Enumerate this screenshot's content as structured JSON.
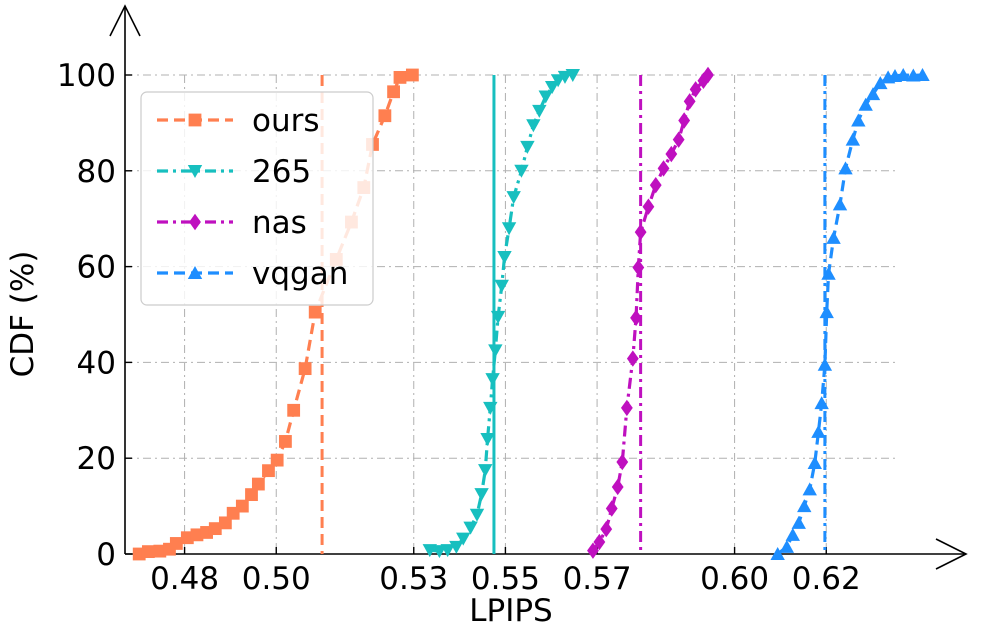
{
  "chart_data": {
    "type": "line",
    "title": "",
    "xlabel": "LPIPS",
    "ylabel": "CDF (%)",
    "x_ticks": [
      "0.48",
      "0.50",
      "0.53",
      "0.55",
      "0.57",
      "0.60",
      "0.62"
    ],
    "y_ticks": [
      "0",
      "20",
      "40",
      "60",
      "80",
      "100"
    ],
    "xlim": [
      0.467,
      0.635
    ],
    "ylim": [
      0,
      100
    ],
    "grid": true,
    "legend_position": "top-left",
    "series": [
      {
        "name": "ours",
        "color": "#ff7f50",
        "marker": "square",
        "line_style": "dashed",
        "median": 0.51,
        "median_line_style": "dashed",
        "points": [
          [
            0.4701,
            0.0
          ],
          [
            0.4721,
            0.5
          ],
          [
            0.4746,
            0.6
          ],
          [
            0.4767,
            1.0
          ],
          [
            0.4782,
            2.2
          ],
          [
            0.4806,
            3.4
          ],
          [
            0.4827,
            4.0
          ],
          [
            0.4848,
            4.5
          ],
          [
            0.4867,
            5.3
          ],
          [
            0.4889,
            6.5
          ],
          [
            0.4906,
            8.5
          ],
          [
            0.4926,
            10.0
          ],
          [
            0.4946,
            12.4
          ],
          [
            0.4961,
            14.6
          ],
          [
            0.4983,
            17.4
          ],
          [
            0.5002,
            19.6
          ],
          [
            0.502,
            23.5
          ],
          [
            0.5038,
            30.0
          ],
          [
            0.5063,
            38.7
          ],
          [
            0.5085,
            50.5
          ],
          [
            0.5131,
            61.5
          ],
          [
            0.5164,
            69.3
          ],
          [
            0.5191,
            76.5
          ],
          [
            0.521,
            85.5
          ],
          [
            0.5237,
            91.5
          ],
          [
            0.5256,
            96.5
          ],
          [
            0.527,
            99.5
          ],
          [
            0.5297,
            100.0
          ]
        ]
      },
      {
        "name": "265",
        "color": "#17bfbf",
        "marker": "triangle-down",
        "line_style": "dash-dot",
        "median": 0.5475,
        "median_line_style": "solid",
        "points": [
          [
            0.5335,
            0.8
          ],
          [
            0.5356,
            0.6
          ],
          [
            0.5374,
            0.8
          ],
          [
            0.5393,
            1.5
          ],
          [
            0.5408,
            3.2
          ],
          [
            0.5424,
            5.5
          ],
          [
            0.5438,
            8.2
          ],
          [
            0.5448,
            12.5
          ],
          [
            0.5456,
            17.5
          ],
          [
            0.5461,
            24.0
          ],
          [
            0.5467,
            30.5
          ],
          [
            0.5472,
            36.5
          ],
          [
            0.5478,
            42.5
          ],
          [
            0.5484,
            49.5
          ],
          [
            0.5492,
            56.0
          ],
          [
            0.5498,
            62.0
          ],
          [
            0.5508,
            68.0
          ],
          [
            0.5518,
            74.5
          ],
          [
            0.5535,
            80.0
          ],
          [
            0.5548,
            85.0
          ],
          [
            0.5561,
            89.5
          ],
          [
            0.5574,
            92.5
          ],
          [
            0.5588,
            95.5
          ],
          [
            0.5602,
            97.5
          ],
          [
            0.5615,
            98.9
          ],
          [
            0.563,
            99.6
          ],
          [
            0.5647,
            100.0
          ]
        ]
      },
      {
        "name": "nas",
        "color": "#bf10bf",
        "marker": "diamond",
        "line_style": "dash-dot",
        "median": 0.5795,
        "median_line_style": "dash-dot",
        "points": [
          [
            0.5691,
            0.7
          ],
          [
            0.5705,
            2.5
          ],
          [
            0.572,
            5.2
          ],
          [
            0.5732,
            9.5
          ],
          [
            0.5745,
            14.0
          ],
          [
            0.5755,
            19.2
          ],
          [
            0.5765,
            30.5
          ],
          [
            0.5778,
            40.8
          ],
          [
            0.5785,
            49.3
          ],
          [
            0.579,
            59.8
          ],
          [
            0.5795,
            67.2
          ],
          [
            0.5812,
            72.5
          ],
          [
            0.5828,
            77.0
          ],
          [
            0.5845,
            80.5
          ],
          [
            0.5862,
            83.5
          ],
          [
            0.5878,
            86.5
          ],
          [
            0.589,
            90.5
          ],
          [
            0.5902,
            94.5
          ],
          [
            0.5915,
            97.0
          ],
          [
            0.5932,
            98.8
          ],
          [
            0.5942,
            100.0
          ]
        ]
      },
      {
        "name": "vqgan",
        "color": "#1e8eff",
        "marker": "triangle-up",
        "line_style": "dashed",
        "median": 0.6197,
        "median_line_style": "dash-dot",
        "points": [
          [
            0.6094,
            0.0
          ],
          [
            0.6114,
            1.5
          ],
          [
            0.6127,
            4.0
          ],
          [
            0.614,
            6.5
          ],
          [
            0.6152,
            10.0
          ],
          [
            0.6164,
            13.5
          ],
          [
            0.6175,
            19.0
          ],
          [
            0.6183,
            25.5
          ],
          [
            0.619,
            31.5
          ],
          [
            0.6197,
            39.5
          ],
          [
            0.6201,
            50.5
          ],
          [
            0.6205,
            58.5
          ],
          [
            0.6216,
            66.0
          ],
          [
            0.623,
            73.0
          ],
          [
            0.6242,
            80.5
          ],
          [
            0.6258,
            86.5
          ],
          [
            0.627,
            90.5
          ],
          [
            0.6286,
            93.8
          ],
          [
            0.6302,
            96.0
          ],
          [
            0.6318,
            98.3
          ],
          [
            0.6335,
            99.5
          ],
          [
            0.635,
            99.8
          ],
          [
            0.6368,
            100.0
          ],
          [
            0.639,
            99.9
          ],
          [
            0.641,
            100.0
          ]
        ]
      }
    ]
  }
}
